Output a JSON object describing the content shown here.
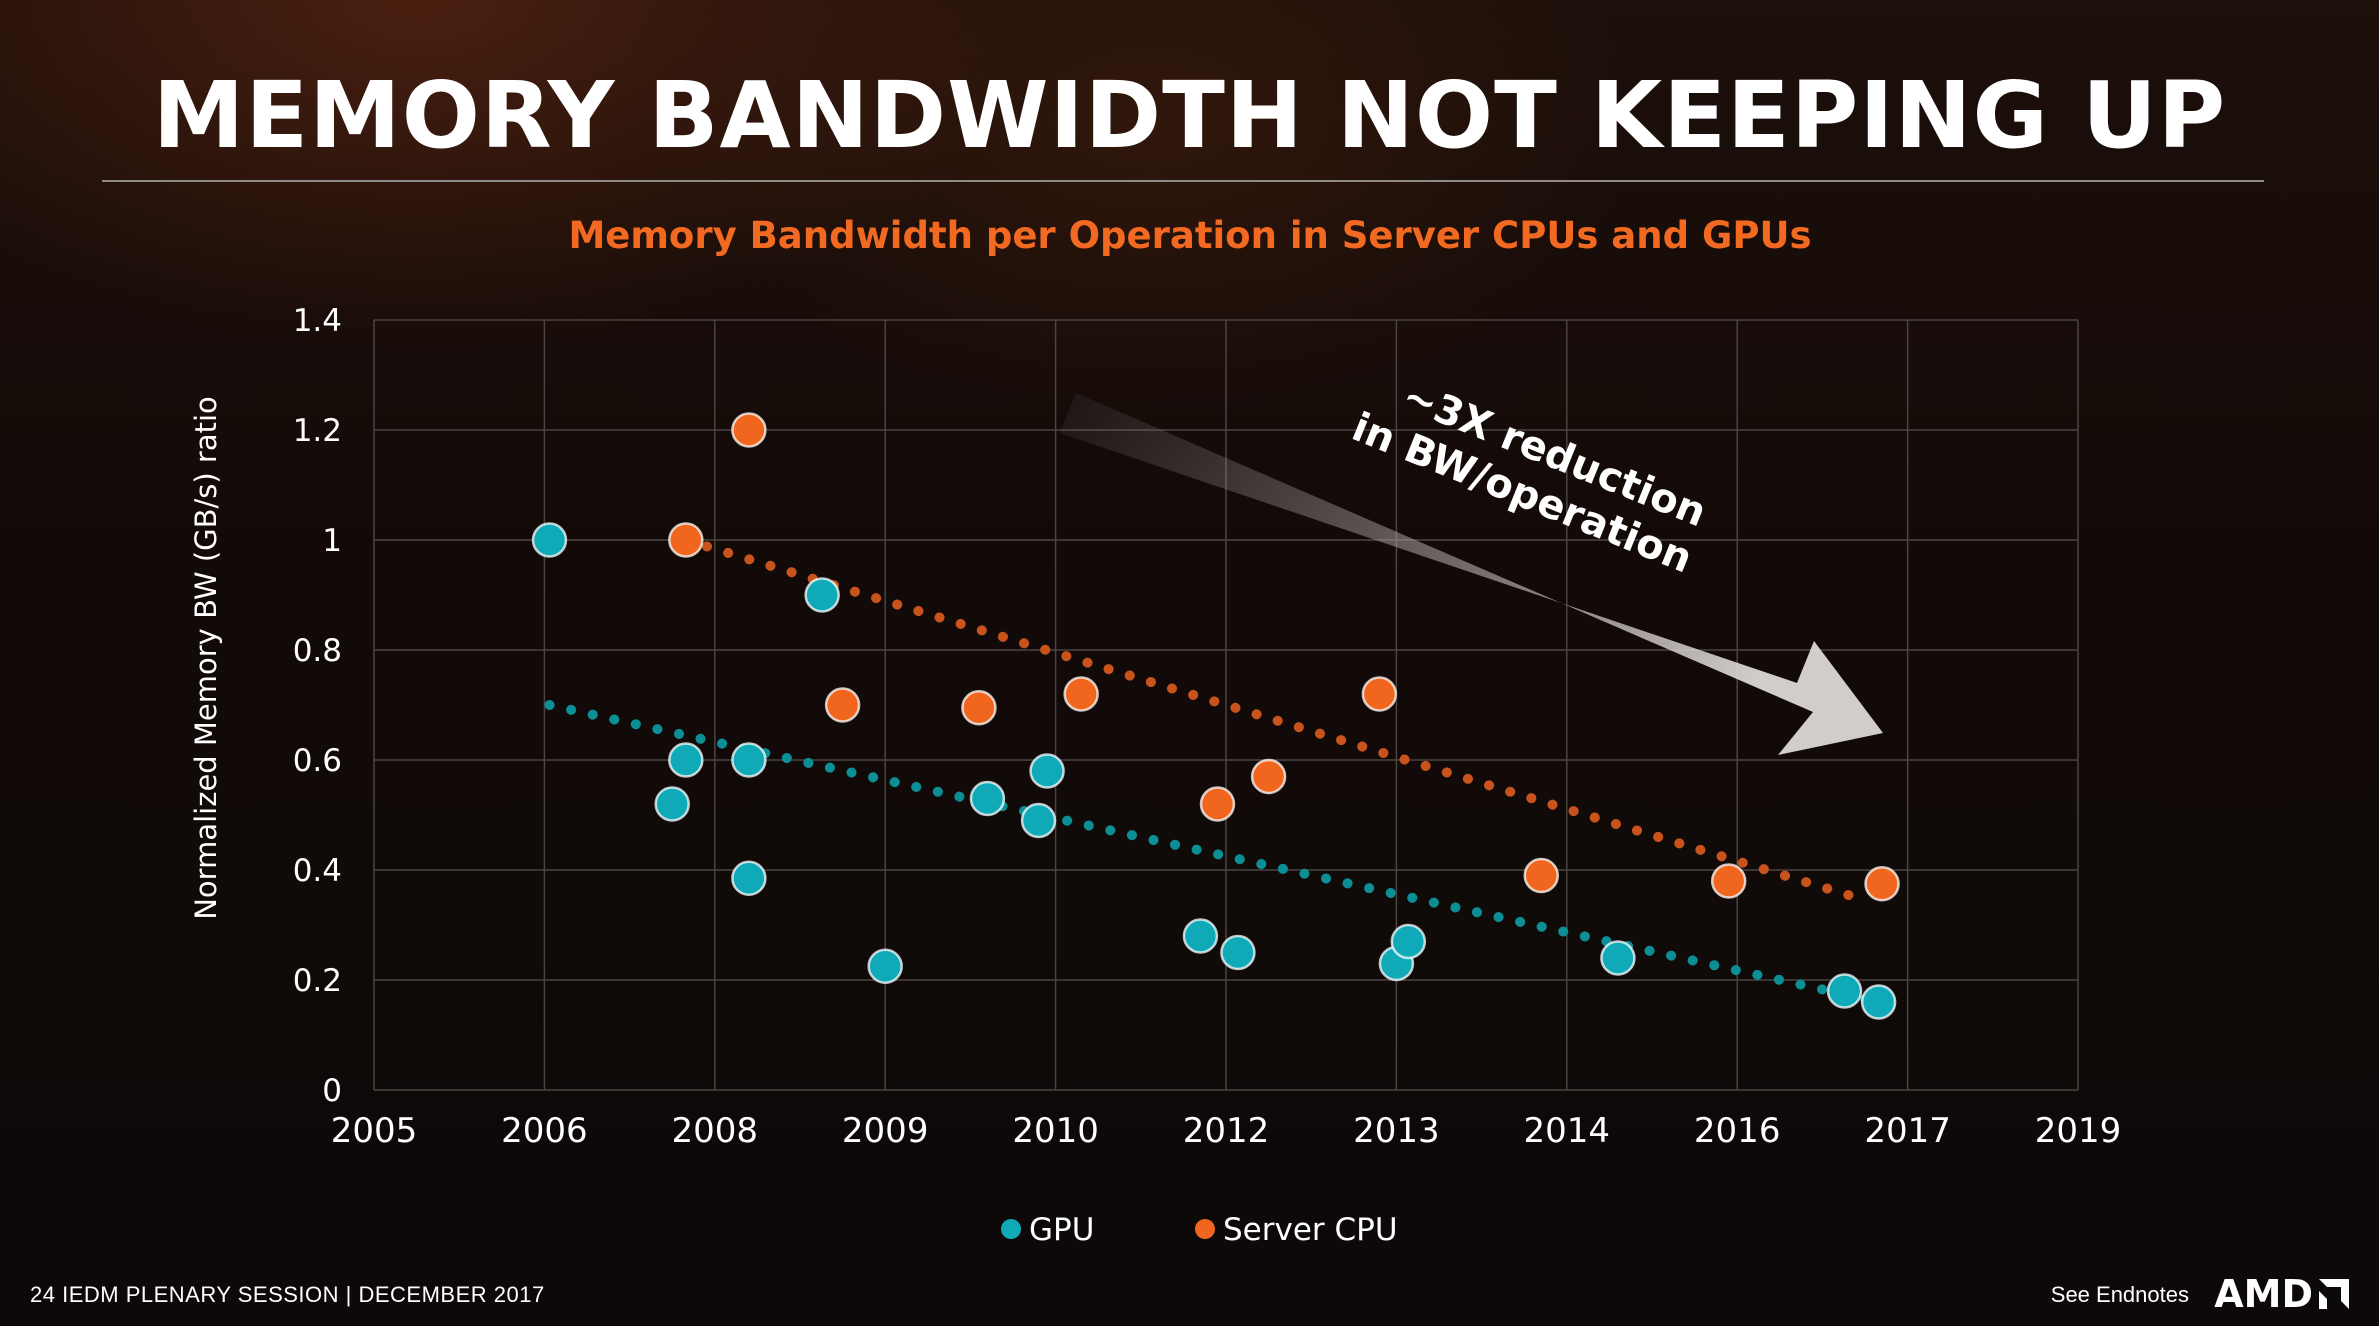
{
  "slide": {
    "title": "MEMORY BANDWIDTH NOT KEEPING UP",
    "footer_left": "24   IEDM PLENARY SESSION  |  DECEMBER 2017",
    "footer_right": "See Endnotes",
    "logo_text": "AMD"
  },
  "colors": {
    "gpu": "#10a9b8",
    "cpu": "#f0661e",
    "gpu_trend": "#0b8f95",
    "cpu_trend": "#c9531d",
    "subtitle": "#f26a22",
    "grid": "#4a4442",
    "text": "#ffffff"
  },
  "chart_data": {
    "type": "scatter",
    "title": "Memory Bandwidth per Operation in Server CPUs and GPUs",
    "ylabel": "Normalized Memory BW (GB/s) ratio",
    "xlabel": "",
    "xlim": [
      0,
      10
    ],
    "ylim": [
      0,
      1.4
    ],
    "x_tick_labels": [
      "2005",
      "2006",
      "2008",
      "2009",
      "2010",
      "2012",
      "2013",
      "2014",
      "2016",
      "2017",
      "2019"
    ],
    "y_ticks": [
      "0",
      "0.2",
      "0.4",
      "0.6",
      "0.8",
      "1",
      "1.2",
      "1.4"
    ],
    "grid": true,
    "legend_position": "bottom-center",
    "series": [
      {
        "name": "GPU",
        "color_key": "gpu",
        "points": [
          [
            1.03,
            1.0
          ],
          [
            1.75,
            0.52
          ],
          [
            1.83,
            0.6
          ],
          [
            2.2,
            0.6
          ],
          [
            2.2,
            0.385
          ],
          [
            2.63,
            0.9
          ],
          [
            3.0,
            0.225
          ],
          [
            3.6,
            0.53
          ],
          [
            3.9,
            0.49
          ],
          [
            3.95,
            0.58
          ],
          [
            4.85,
            0.28
          ],
          [
            5.07,
            0.25
          ],
          [
            6.0,
            0.23
          ],
          [
            6.07,
            0.27
          ],
          [
            7.3,
            0.24
          ],
          [
            8.63,
            0.18
          ],
          [
            8.83,
            0.16
          ]
        ],
        "trend": [
          [
            1.03,
            0.7
          ],
          [
            8.83,
            0.16
          ]
        ]
      },
      {
        "name": "Server CPU",
        "color_key": "cpu",
        "points": [
          [
            1.83,
            1.0
          ],
          [
            2.2,
            1.2
          ],
          [
            2.75,
            0.7
          ],
          [
            3.55,
            0.695
          ],
          [
            4.15,
            0.72
          ],
          [
            4.95,
            0.52
          ],
          [
            5.25,
            0.57
          ],
          [
            5.9,
            0.72
          ],
          [
            6.85,
            0.39
          ],
          [
            7.95,
            0.38
          ],
          [
            8.85,
            0.375
          ]
        ],
        "trend": [
          [
            1.83,
            1.0
          ],
          [
            8.7,
            0.35
          ]
        ]
      }
    ],
    "annotation": {
      "text_lines": [
        "~3X reduction",
        "in BW/operation"
      ]
    }
  }
}
